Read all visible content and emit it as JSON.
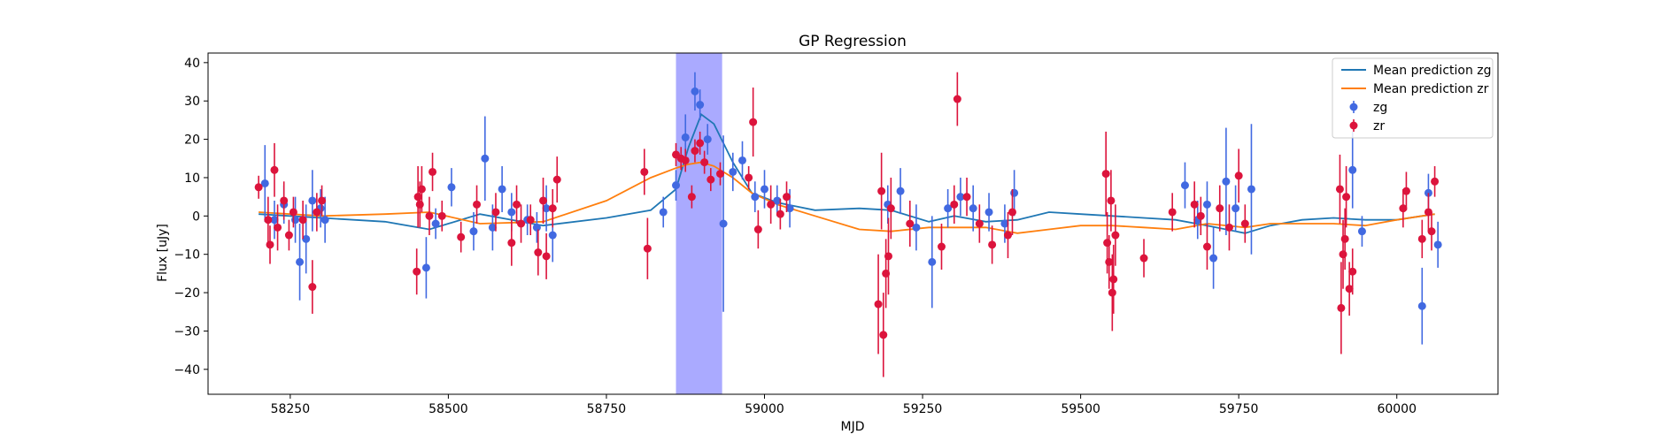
{
  "chart_data": {
    "type": "scatter",
    "title": "GP Regression",
    "xlabel": "MJD",
    "ylabel": "Flux [uJy]",
    "xlim": [
      58120,
      60160
    ],
    "ylim": [
      -46.5,
      42.5
    ],
    "xticks": [
      58250,
      58500,
      58750,
      59000,
      59250,
      59500,
      59750,
      60000
    ],
    "yticks": [
      -40,
      -30,
      -20,
      -10,
      0,
      10,
      20,
      30,
      40
    ],
    "grid": false,
    "legend_position": "top-right",
    "highlight_band": {
      "x0": 58860,
      "x1": 58933,
      "color": "#aaaaff"
    },
    "colors": {
      "zg": "#4169e1",
      "zr": "#dc143c",
      "mean_zg": "#1f77b4",
      "mean_zr": "#ff7f0e"
    },
    "legend": [
      {
        "label": "Mean prediction zg",
        "kind": "line",
        "color": "#1f77b4"
      },
      {
        "label": "Mean prediction zr",
        "kind": "line",
        "color": "#ff7f0e"
      },
      {
        "label": "zg",
        "kind": "marker",
        "color": "#4169e1"
      },
      {
        "label": "zr",
        "kind": "marker",
        "color": "#dc143c"
      }
    ],
    "series": [
      {
        "name": "Mean prediction zg",
        "kind": "line",
        "color": "#1f77b4",
        "x": [
          58200,
          58300,
          58400,
          58470,
          58550,
          58650,
          58750,
          58820,
          58860,
          58880,
          58900,
          58920,
          58950,
          58980,
          59020,
          59080,
          59150,
          59200,
          59260,
          59300,
          59350,
          59400,
          59450,
          59500,
          59550,
          59600,
          59650,
          59700,
          59760,
          59800,
          59850,
          59900,
          59950,
          60000,
          60040,
          60060
        ],
        "y": [
          0.5,
          -0.5,
          -1.5,
          -3.5,
          0.5,
          -2.5,
          -0.5,
          1.5,
          7,
          18,
          26.5,
          24,
          14,
          6,
          3.5,
          1.5,
          2,
          1.5,
          -1.5,
          0,
          -1.5,
          -1,
          1,
          0.5,
          0,
          -0.5,
          -1,
          -2.5,
          -4.5,
          -2.5,
          -1,
          -0.5,
          -1,
          -1,
          0,
          0.5
        ]
      },
      {
        "name": "Mean prediction zr",
        "kind": "line",
        "color": "#ff7f0e",
        "x": [
          58200,
          58300,
          58400,
          58470,
          58550,
          58650,
          58750,
          58820,
          58860,
          58880,
          58900,
          58920,
          58950,
          58980,
          59020,
          59080,
          59150,
          59200,
          59260,
          59300,
          59350,
          59400,
          59450,
          59500,
          59550,
          59600,
          59650,
          59700,
          59760,
          59800,
          59850,
          59900,
          59950,
          60000,
          60040,
          60060
        ],
        "y": [
          1,
          0,
          0.5,
          1,
          -2,
          -1.5,
          4,
          10,
          12.5,
          13.5,
          14,
          13,
          10,
          6,
          3,
          0,
          -3.5,
          -4,
          -3,
          -3,
          -3,
          -4.5,
          -3.5,
          -2.5,
          -2.5,
          -3,
          -3.5,
          -2,
          -3,
          -2,
          -2,
          -2,
          -2.5,
          -1,
          0,
          0.5
        ]
      },
      {
        "name": "zg",
        "kind": "errorbar",
        "color": "#4169e1",
        "x": [
          58210,
          58225,
          58240,
          58258,
          58265,
          58275,
          58285,
          58298,
          58305,
          58465,
          58480,
          58505,
          58540,
          58558,
          58570,
          58585,
          58600,
          58625,
          58640,
          58655,
          58665,
          58840,
          58860,
          58875,
          58890,
          58898,
          58910,
          58935,
          58950,
          58965,
          58985,
          59000,
          59020,
          59040,
          59195,
          59215,
          59240,
          59265,
          59290,
          59310,
          59330,
          59355,
          59380,
          59395,
          59665,
          59685,
          59700,
          59710,
          59730,
          59745,
          59770,
          59930,
          59945,
          60040,
          60050,
          60065
        ],
        "y": [
          8.5,
          -1,
          3,
          -1,
          -12,
          -6,
          4,
          2,
          -1,
          -13.5,
          -2,
          7.5,
          -4,
          15,
          -3,
          7,
          1,
          -1,
          -3,
          2,
          -5,
          1,
          8,
          20.5,
          32.5,
          29,
          20,
          -2,
          11.5,
          14.5,
          5,
          7,
          4,
          2,
          3,
          6.5,
          -3,
          -12,
          2,
          5,
          2,
          1,
          -2,
          6,
          8,
          -1,
          3,
          -11,
          9,
          2,
          7,
          12,
          -4,
          -23.5,
          6,
          -7.5
        ],
        "err": [
          10,
          5,
          5,
          6,
          10,
          9,
          8,
          5,
          6,
          8,
          4,
          5,
          5,
          11,
          6,
          6,
          5,
          4,
          4,
          6,
          7,
          4,
          4,
          6,
          5,
          4,
          4,
          23,
          5,
          5,
          4,
          5,
          4,
          5,
          5,
          6,
          6,
          12,
          5,
          5,
          6,
          5,
          5,
          6,
          6,
          5,
          6,
          8,
          14,
          6,
          17,
          10,
          4,
          10,
          5,
          6
        ]
      },
      {
        "name": "zr",
        "kind": "errorbar",
        "color": "#dc143c",
        "x": [
          58200,
          58215,
          58218,
          58225,
          58230,
          58240,
          58248,
          58255,
          58270,
          58285,
          58292,
          58300,
          58450,
          58452,
          58455,
          58458,
          58470,
          58475,
          58490,
          58520,
          58545,
          58575,
          58600,
          58608,
          58615,
          58630,
          58642,
          58650,
          58655,
          58665,
          58672,
          58810,
          58815,
          58860,
          58868,
          58875,
          58885,
          58890,
          58898,
          58905,
          58915,
          58930,
          58975,
          58982,
          58990,
          59010,
          59025,
          59035,
          59180,
          59185,
          59188,
          59192,
          59196,
          59200,
          59230,
          59280,
          59300,
          59305,
          59320,
          59340,
          59360,
          59385,
          59392,
          59540,
          59542,
          59545,
          59548,
          59550,
          59552,
          59555,
          59600,
          59645,
          59680,
          59690,
          59700,
          59720,
          59735,
          59750,
          59760,
          59910,
          59912,
          59915,
          59918,
          59920,
          59925,
          59930,
          60010,
          60015,
          60040,
          60050,
          60055,
          60060
        ],
        "y": [
          7.5,
          -1,
          -7.5,
          12,
          -3,
          4,
          -5,
          1,
          -1,
          -18.5,
          1,
          4,
          -14.5,
          5,
          3,
          7,
          0,
          11.5,
          0,
          -5.5,
          3,
          1,
          -7,
          3,
          -2,
          -1,
          -9.5,
          4,
          -10.5,
          2,
          9.5,
          11.5,
          -8.5,
          16,
          15,
          14.5,
          5,
          17,
          19,
          14,
          9.5,
          11,
          10,
          24.5,
          -3.5,
          3,
          0.5,
          5,
          -23,
          6.5,
          -31,
          -15,
          -10.5,
          2,
          -2,
          -8,
          3,
          30.5,
          5,
          -2,
          -7.5,
          -5,
          1,
          11,
          -7,
          -12,
          4,
          -20,
          -16.5,
          -5,
          -11,
          1,
          3,
          0,
          -8,
          2,
          -3,
          10.5,
          -2,
          7,
          -24,
          -10,
          -6,
          5,
          -19,
          -14.5,
          2,
          6.5,
          -6,
          1,
          -4,
          9
        ],
        "err": [
          3,
          6,
          5,
          7,
          6,
          5,
          4,
          4,
          5,
          7,
          5,
          4,
          6,
          8,
          6,
          6,
          5,
          5,
          4,
          4,
          5,
          5,
          6,
          5,
          5,
          4,
          6,
          6,
          6,
          5,
          6,
          6,
          8,
          3,
          3,
          3,
          3,
          3,
          3,
          3,
          3,
          3,
          3,
          9,
          5,
          5,
          4,
          4,
          13,
          10,
          11,
          9,
          10,
          8,
          6,
          6,
          5,
          7,
          5,
          5,
          5,
          6,
          6,
          11,
          8,
          7,
          8,
          10,
          9,
          8,
          5,
          5,
          6,
          5,
          6,
          6,
          6,
          7,
          5,
          9,
          12,
          9,
          8,
          8,
          7,
          6,
          5,
          5,
          5,
          5,
          5,
          4
        ]
      }
    ]
  }
}
